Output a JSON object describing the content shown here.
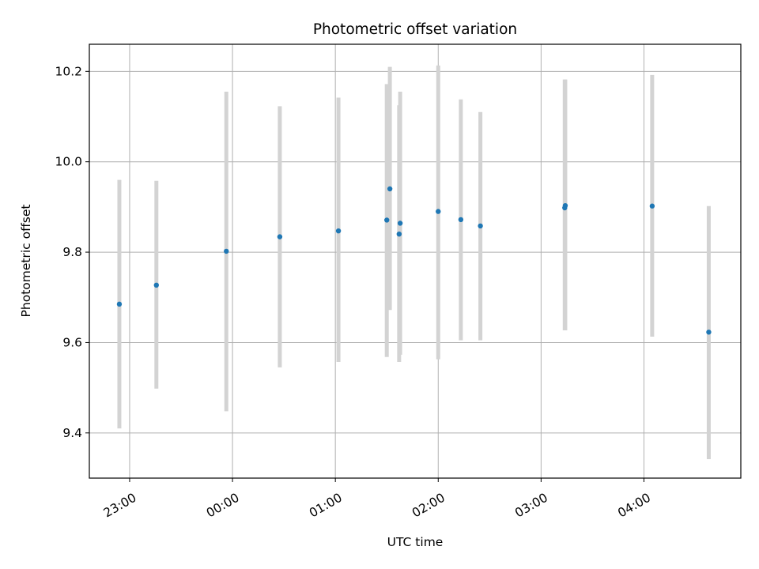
{
  "chart_data": {
    "type": "scatter",
    "title": "Photometric offset variation",
    "xlabel": "UTC time",
    "ylabel": "Photometric offset",
    "xlim": [
      -1.3917,
      4.9417
    ],
    "ylim": [
      9.3,
      10.26
    ],
    "x_unit": "hours after 00:00 UTC (negative = previous day)",
    "x_ticks": [
      {
        "value": -1,
        "label": "23:00"
      },
      {
        "value": 0,
        "label": "00:00"
      },
      {
        "value": 1,
        "label": "01:00"
      },
      {
        "value": 2,
        "label": "02:00"
      },
      {
        "value": 3,
        "label": "03:00"
      },
      {
        "value": 4,
        "label": "04:00"
      }
    ],
    "y_ticks": [
      {
        "value": 9.4,
        "label": "9.4"
      },
      {
        "value": 9.6,
        "label": "9.6"
      },
      {
        "value": 9.8,
        "label": "9.8"
      },
      {
        "value": 10.0,
        "label": "10.0"
      },
      {
        "value": 10.2,
        "label": "10.2"
      }
    ],
    "grid": true,
    "series": [
      {
        "name": "Photometric offset",
        "color": "#1f77b4",
        "error_color": "#d3d3d3",
        "points": [
          {
            "x": -1.1,
            "y": 9.685,
            "yerr_low": 9.41,
            "yerr_high": 9.96
          },
          {
            "x": -0.74,
            "y": 9.727,
            "yerr_low": 9.498,
            "yerr_high": 9.958
          },
          {
            "x": -0.06,
            "y": 9.802,
            "yerr_low": 9.448,
            "yerr_high": 10.155
          },
          {
            "x": 0.46,
            "y": 9.834,
            "yerr_low": 9.545,
            "yerr_high": 10.123
          },
          {
            "x": 1.03,
            "y": 9.847,
            "yerr_low": 9.557,
            "yerr_high": 10.142
          },
          {
            "x": 1.5,
            "y": 9.871,
            "yerr_low": 9.568,
            "yerr_high": 10.172
          },
          {
            "x": 1.53,
            "y": 9.94,
            "yerr_low": 9.672,
            "yerr_high": 10.21
          },
          {
            "x": 1.62,
            "y": 9.84,
            "yerr_low": 9.557,
            "yerr_high": 10.125
          },
          {
            "x": 1.63,
            "y": 9.864,
            "yerr_low": 9.573,
            "yerr_high": 10.155
          },
          {
            "x": 2.0,
            "y": 9.89,
            "yerr_low": 9.563,
            "yerr_high": 10.213
          },
          {
            "x": 2.22,
            "y": 9.872,
            "yerr_low": 9.605,
            "yerr_high": 10.138
          },
          {
            "x": 2.41,
            "y": 9.858,
            "yerr_low": 9.605,
            "yerr_high": 10.11
          },
          {
            "x": 3.23,
            "y": 9.898,
            "yerr_low": 9.627,
            "yerr_high": 10.182
          },
          {
            "x": 3.235,
            "y": 9.903,
            "yerr_low": 9.627,
            "yerr_high": 10.182
          },
          {
            "x": 4.08,
            "y": 9.902,
            "yerr_low": 9.613,
            "yerr_high": 10.192
          },
          {
            "x": 4.63,
            "y": 9.623,
            "yerr_low": 9.342,
            "yerr_high": 9.902
          }
        ]
      }
    ]
  }
}
